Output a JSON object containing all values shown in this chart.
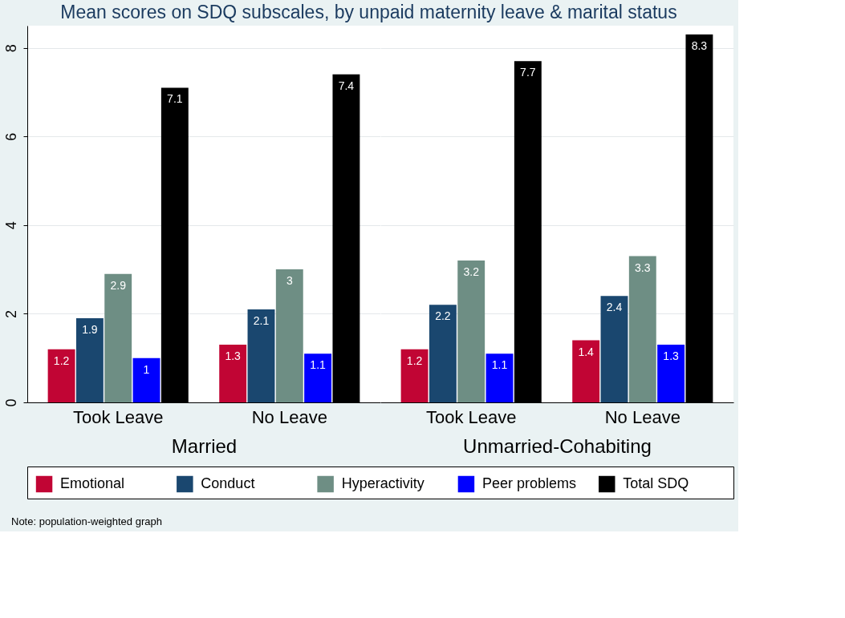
{
  "chart_data": [
    {
      "type": "bar",
      "title": "Mean scores on SDQ subscales, by unpaid maternity leave & marital status",
      "xlabel": "Married",
      "categories": [
        "Took Leave",
        "No Leave"
      ],
      "ylim": [
        0,
        8.5
      ],
      "yticks": [
        0,
        2,
        4,
        6,
        8
      ],
      "grid": "y",
      "data_labels": true,
      "legend": "bottom",
      "annotations": [
        "Note: population-weighted graph"
      ],
      "series": [
        {
          "name": "Emotional",
          "color": "#c10534",
          "values": [
            1.2,
            1.3
          ]
        },
        {
          "name": "Conduct",
          "color": "#1a476f",
          "values": [
            1.9,
            2.1
          ]
        },
        {
          "name": "Hyperactivity",
          "color": "#6e8e84",
          "values": [
            2.9,
            3
          ]
        },
        {
          "name": "Peer problems",
          "color": "#0000ff",
          "values": [
            1,
            1.1
          ]
        },
        {
          "name": "Total SDQ",
          "color": "#000000",
          "values": [
            7.1,
            7.4
          ]
        }
      ]
    },
    {
      "type": "bar",
      "xlabel": "Unmarried-Cohabiting",
      "categories": [
        "Took Leave",
        "No Leave"
      ],
      "ylim": [
        0,
        8.5
      ],
      "yticks": [
        0,
        2,
        4,
        6,
        8
      ],
      "grid": "y",
      "data_labels": true,
      "tick_labels": "x",
      "series": [
        {
          "color": "#c10534",
          "values": [
            1.2,
            1.4
          ]
        },
        {
          "color": "#1a476f",
          "values": [
            2.2,
            2.4
          ]
        },
        {
          "color": "#6e8e84",
          "values": [
            3.2,
            3.3
          ]
        },
        {
          "color": "#0000ff",
          "values": [
            1.1,
            1.3
          ]
        },
        {
          "color": "#000000",
          "values": [
            7.7,
            8.3
          ]
        }
      ]
    }
  ]
}
